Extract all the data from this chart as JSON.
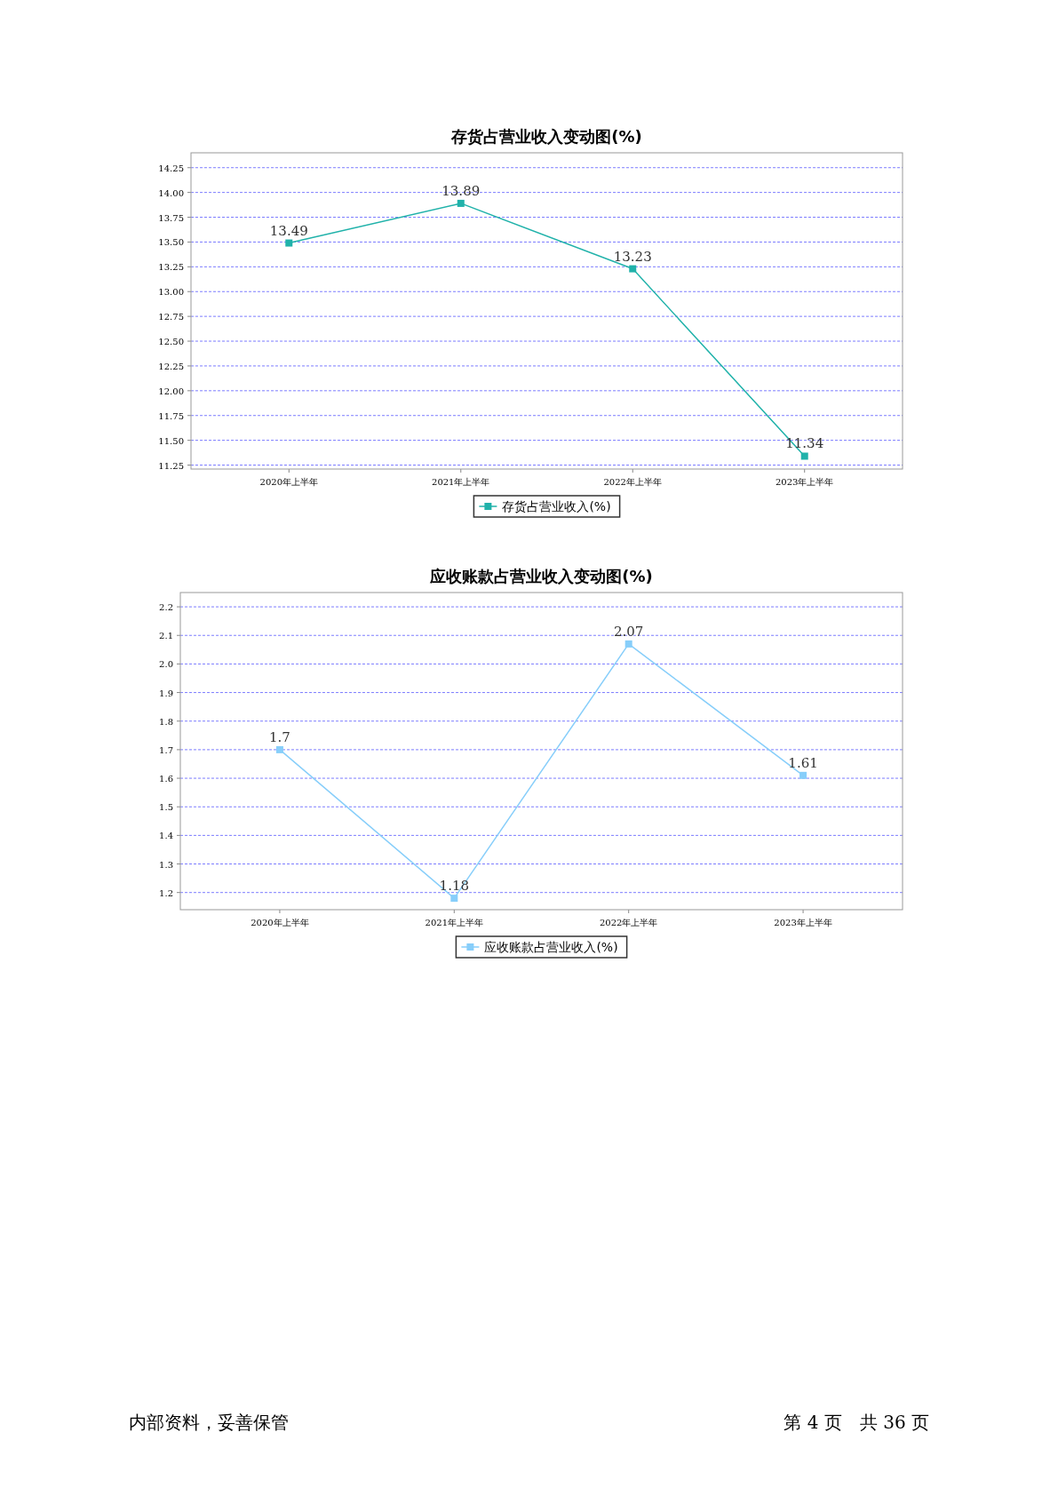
{
  "chart_data": [
    {
      "type": "line",
      "title": "存货占营业收入变动图(%)",
      "categories": [
        "2020年上半年",
        "2021年上半年",
        "2022年上半年",
        "2023年上半年"
      ],
      "series": [
        {
          "name": "存货占营业收入(%)",
          "color": "#20b2aa",
          "values": [
            13.49,
            13.89,
            13.23,
            11.34
          ]
        }
      ],
      "ylim": [
        11.21,
        14.4
      ],
      "yticks": [
        {
          "value": 11.25,
          "label": "11.25"
        },
        {
          "value": 11.5,
          "label": "11.50"
        },
        {
          "value": 11.75,
          "label": "11.75"
        },
        {
          "value": 12,
          "label": "12.00"
        },
        {
          "value": 12.25,
          "label": "12.25"
        },
        {
          "value": 12.5,
          "label": "12.50"
        },
        {
          "value": 12.75,
          "label": "12.75"
        },
        {
          "value": 13,
          "label": "13.00"
        },
        {
          "value": 13.25,
          "label": "13.25"
        },
        {
          "value": 13.5,
          "label": "13.50"
        },
        {
          "value": 13.75,
          "label": "13.75"
        },
        {
          "value": 14,
          "label": "14.00"
        },
        {
          "value": 14.25,
          "label": "14.25"
        }
      ],
      "grid": "y",
      "legend": "bottom",
      "marker": "square",
      "line_style": "solid",
      "data_labels": true
    },
    {
      "type": "line",
      "title": "应收账款占营业收入变动图(%)",
      "categories": [
        "2020年上半年",
        "2021年上半年",
        "2022年上半年",
        "2023年上半年"
      ],
      "series": [
        {
          "name": "应收账款占营业收入(%)",
          "color": "#87cefa",
          "values": [
            1.7,
            1.18,
            2.07,
            1.61
          ]
        }
      ],
      "ylim": [
        1.14,
        2.25
      ],
      "yticks": [
        1.2,
        1.3,
        1.4,
        1.5,
        1.6,
        1.7,
        1.8,
        1.9,
        {
          "value": 2,
          "label": "2.0"
        },
        2.1,
        2.2
      ],
      "grid": "y",
      "legend": "bottom",
      "marker": "square",
      "line_style": "solid",
      "data_labels": true,
      "annotations": [
        "内部资料，妥善保管",
        "第 4 页　共 36 页"
      ]
    }
  ]
}
